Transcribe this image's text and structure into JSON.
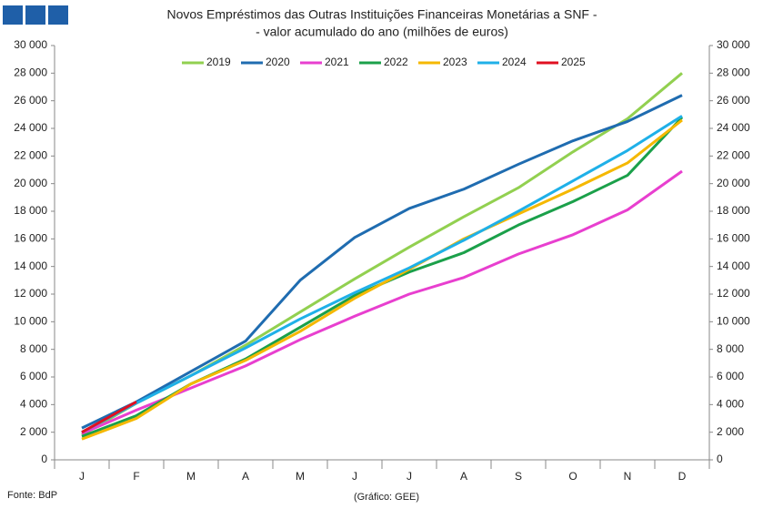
{
  "chart_data": {
    "type": "line",
    "title": [
      "Novos Empréstimos das Outras Instituições Financeiras Monetárias a SNF -",
      "- valor acumulado do ano (milhões de euros)"
    ],
    "categories": [
      "J",
      "F",
      "M",
      "A",
      "M",
      "J",
      "J",
      "A",
      "S",
      "O",
      "N",
      "D"
    ],
    "series": [
      {
        "name": "2019",
        "color": "#92d050",
        "values": [
          1800,
          4100,
          6100,
          8300,
          10700,
          13100,
          15400,
          17600,
          19700,
          22300,
          24700,
          28000
        ]
      },
      {
        "name": "2020",
        "color": "#1f6cb0",
        "values": [
          2300,
          4200,
          6400,
          8600,
          13000,
          16100,
          18200,
          19600,
          21400,
          23100,
          24500,
          26400
        ]
      },
      {
        "name": "2021",
        "color": "#e83fcf",
        "values": [
          1900,
          3600,
          5200,
          6800,
          8700,
          10400,
          12000,
          13200,
          14900,
          16300,
          18100,
          20900
        ]
      },
      {
        "name": "2022",
        "color": "#1ba04a",
        "values": [
          1700,
          3200,
          5500,
          7300,
          9600,
          11900,
          13600,
          15000,
          17000,
          18700,
          20600,
          24800
        ]
      },
      {
        "name": "2023",
        "color": "#f5b800",
        "values": [
          1500,
          3000,
          5500,
          7200,
          9300,
          11700,
          13800,
          16000,
          17800,
          19600,
          21500,
          24600
        ]
      },
      {
        "name": "2024",
        "color": "#1fb0e8",
        "values": [
          2000,
          4100,
          6100,
          8100,
          10200,
          12100,
          13900,
          15900,
          18000,
          20200,
          22400,
          24900
        ]
      },
      {
        "name": "2025",
        "color": "#e01020",
        "values": [
          2000,
          4200,
          null,
          null,
          null,
          null,
          null,
          null,
          null,
          null,
          null,
          null
        ]
      }
    ],
    "ylim": [
      0,
      30000
    ],
    "yticks": [
      0,
      {
        "value": 2000,
        "label": "2 000"
      },
      {
        "value": 4000,
        "label": "4 000"
      },
      {
        "value": 6000,
        "label": "6 000"
      },
      {
        "value": 8000,
        "label": "8 000"
      },
      {
        "value": 10000,
        "label": "10 000"
      },
      {
        "value": 12000,
        "label": "12 000"
      },
      {
        "value": 14000,
        "label": "14 000"
      },
      {
        "value": 16000,
        "label": "16 000"
      },
      {
        "value": 18000,
        "label": "18 000"
      },
      {
        "value": 20000,
        "label": "20 000"
      },
      {
        "value": 22000,
        "label": "22 000"
      },
      {
        "value": 24000,
        "label": "24 000"
      },
      {
        "value": 26000,
        "label": "26 000"
      },
      {
        "value": 28000,
        "label": "28 000"
      },
      {
        "value": 30000,
        "label": "30 000"
      }
    ],
    "grid": false,
    "legend": "top",
    "source": "Fonte: BdP",
    "credit": "(Gráfico: GEE)"
  }
}
